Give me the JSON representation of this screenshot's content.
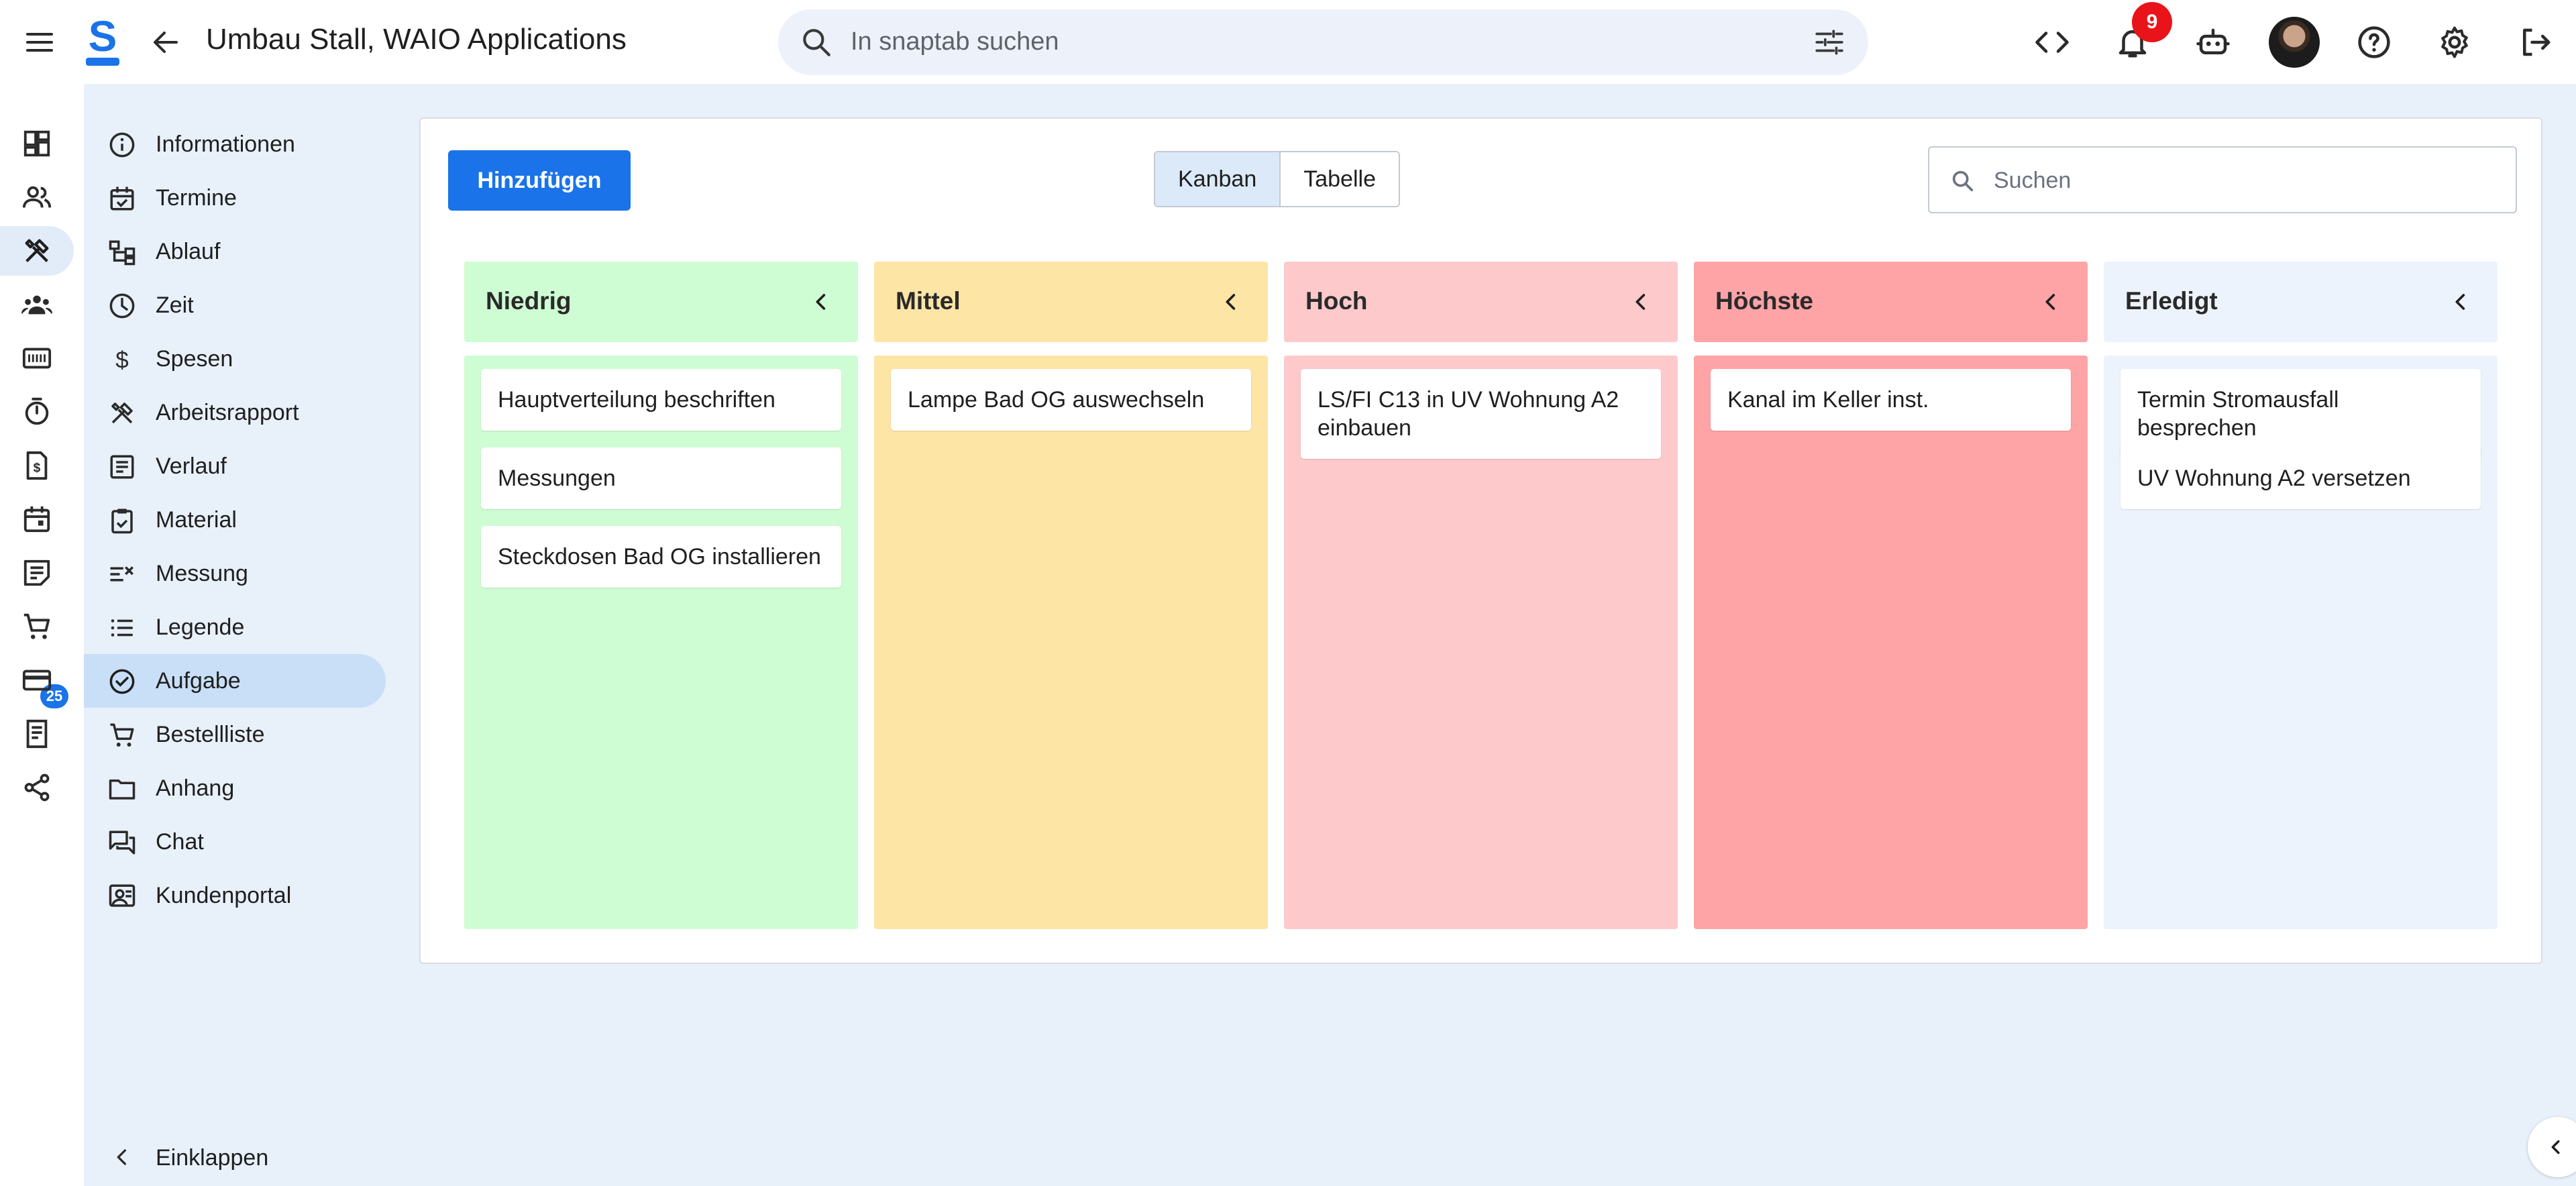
{
  "app": {
    "title": "Umbau Stall, WAIO Applications",
    "accent_color": "#1a73e8"
  },
  "header": {
    "search_placeholder": "In snaptab suchen",
    "notifications_count": "9",
    "icons": [
      "menu-icon",
      "logo-icon",
      "back-icon",
      "search-icon",
      "filter-icon",
      "code-icon",
      "bell-icon",
      "robot-icon",
      "avatar",
      "help-icon",
      "settings-icon",
      "logout-icon"
    ]
  },
  "rail": {
    "cart_badge": "25",
    "icons": [
      "dashboard-icon",
      "contacts-icon",
      "tools-icon",
      "groups-icon",
      "ticket-icon",
      "timer-icon",
      "invoice-icon",
      "calendar-icon",
      "notes-icon",
      "cart-icon",
      "payment-icon",
      "receipt-icon",
      "share-icon"
    ]
  },
  "subnav": {
    "items": [
      {
        "label": "Informationen",
        "icon": "info-icon"
      },
      {
        "label": "Termine",
        "icon": "calendar-check-icon"
      },
      {
        "label": "Ablauf",
        "icon": "flow-icon"
      },
      {
        "label": "Zeit",
        "icon": "clock-icon"
      },
      {
        "label": "Spesen",
        "icon": "dollar-icon"
      },
      {
        "label": "Arbeitsrapport",
        "icon": "tools-icon"
      },
      {
        "label": "Verlauf",
        "icon": "history-icon"
      },
      {
        "label": "Material",
        "icon": "clipboard-icon"
      },
      {
        "label": "Messung",
        "icon": "measure-icon"
      },
      {
        "label": "Legende",
        "icon": "list-icon"
      },
      {
        "label": "Aufgabe",
        "icon": "check-circle-icon"
      },
      {
        "label": "Bestellliste",
        "icon": "cart-icon"
      },
      {
        "label": "Anhang",
        "icon": "folder-icon"
      },
      {
        "label": "Chat",
        "icon": "chat-icon"
      },
      {
        "label": "Kundenportal",
        "icon": "portal-icon"
      }
    ],
    "active": "Aufgabe",
    "collapse_label": "Einklappen"
  },
  "toolbar": {
    "add_label": "Hinzufügen",
    "view_kanban": "Kanban",
    "view_table": "Tabelle",
    "active_view": "Kanban",
    "search_placeholder": "Suchen"
  },
  "kanban": {
    "columns": [
      {
        "label": "Niedrig",
        "head_color": "#cffdd3",
        "body_color": "#cffdd3",
        "cards": [
          "Hauptverteilung beschriften",
          "Messungen",
          "Steckdosen Bad OG installieren"
        ]
      },
      {
        "label": "Mittel",
        "head_color": "#fde5a6",
        "body_color": "#fde5a6",
        "cards": [
          "Lampe Bad OG auswechseln"
        ]
      },
      {
        "label": "Hoch",
        "head_color": "#fec9cb",
        "body_color": "#fec9cb",
        "cards": [
          "LS/FI C13 in UV Wohnung A2 einbauen"
        ]
      },
      {
        "label": "Höchste",
        "head_color": "#fea3a6",
        "body_color": "#fea3a6",
        "cards": [
          "Kanal im Keller inst."
        ]
      },
      {
        "label": "Erledigt",
        "head_color": "#edf3fc",
        "body_color": "#edf3fc",
        "cards": [
          "Termin Stromausfall besprechen",
          "UV Wohnung A2 versetzen"
        ]
      }
    ]
  }
}
